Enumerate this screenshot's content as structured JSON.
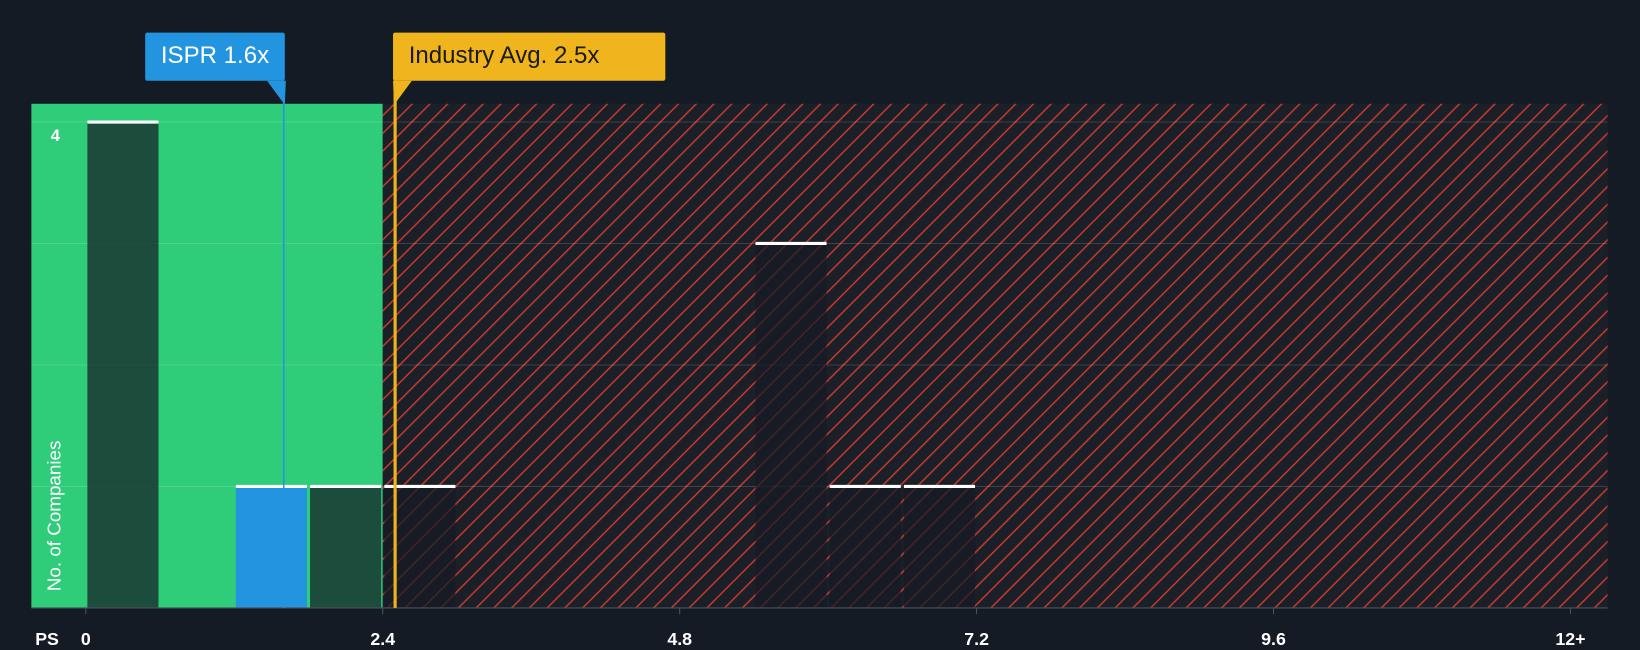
{
  "chart_data": {
    "type": "histogram",
    "bins": [
      0,
      0.6,
      1.2,
      1.8,
      2.4,
      3.0,
      3.6,
      4.2,
      4.8,
      5.4,
      6.0,
      6.6,
      7.2
    ],
    "values": [
      4,
      0,
      1,
      1,
      1,
      0,
      0,
      0,
      0,
      3,
      1,
      1
    ],
    "highlight_bin": 2,
    "highlight_color": "#2394e0",
    "xlabel": "PS",
    "ylabel": "No. of Companies",
    "xlim": [
      -0.44,
      12.3
    ],
    "ylim": [
      0,
      4.15
    ],
    "xticks": [
      0,
      2.4,
      4.8,
      7.2,
      9.6,
      {
        "value": 12,
        "label": "12+"
      }
    ],
    "yticks": [
      4
    ],
    "ygrid": [
      1,
      2,
      3,
      4
    ],
    "regions": [
      {
        "to": 2.4,
        "color": "#2fcc7a"
      },
      {
        "from": 2.4,
        "color": "#c0392b",
        "pattern": "hatch"
      }
    ],
    "annotations": [
      {
        "label": "ISPR 1.6x",
        "value": 1.6,
        "color": "#2394e0"
      },
      {
        "label": "Industry Avg. 2.5x",
        "value": 2.5,
        "color": "#f0b41c"
      }
    ]
  }
}
